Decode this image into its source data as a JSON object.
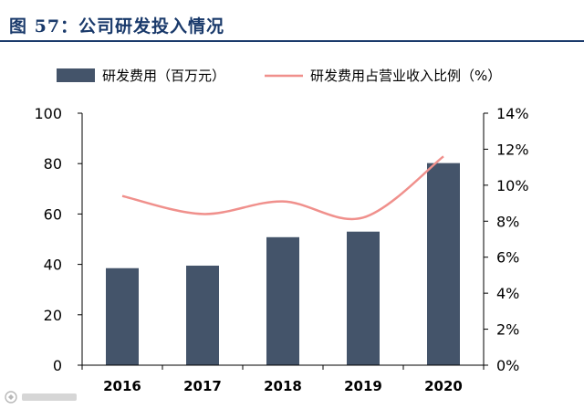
{
  "figure": {
    "title": "图 57：公司研发投入情况"
  },
  "chart_data": {
    "type": "bar",
    "categories": [
      "2016",
      "2017",
      "2018",
      "2019",
      "2020"
    ],
    "series": [
      {
        "name": "研发费用（百万元）",
        "type": "bar",
        "axis": "left",
        "values": [
          38.5,
          39.5,
          50.8,
          53.0,
          80.2
        ],
        "color": "#44546a"
      },
      {
        "name": "研发费用占营业收入比例（%）",
        "type": "line",
        "axis": "right",
        "values": [
          9.4,
          8.4,
          9.1,
          8.2,
          11.6
        ],
        "color": "#f0908c"
      }
    ],
    "left_axis": {
      "ylim": [
        0,
        100
      ],
      "ticks": [
        "0",
        "20",
        "40",
        "60",
        "80",
        "100"
      ]
    },
    "right_axis": {
      "ylim": [
        0,
        14
      ],
      "ticks": [
        "0%",
        "2%",
        "4%",
        "6%",
        "8%",
        "10%",
        "12%",
        "14%"
      ]
    },
    "grid": false,
    "legend_position": "top"
  },
  "watermark": {
    "icon": "logo-mark-icon"
  }
}
